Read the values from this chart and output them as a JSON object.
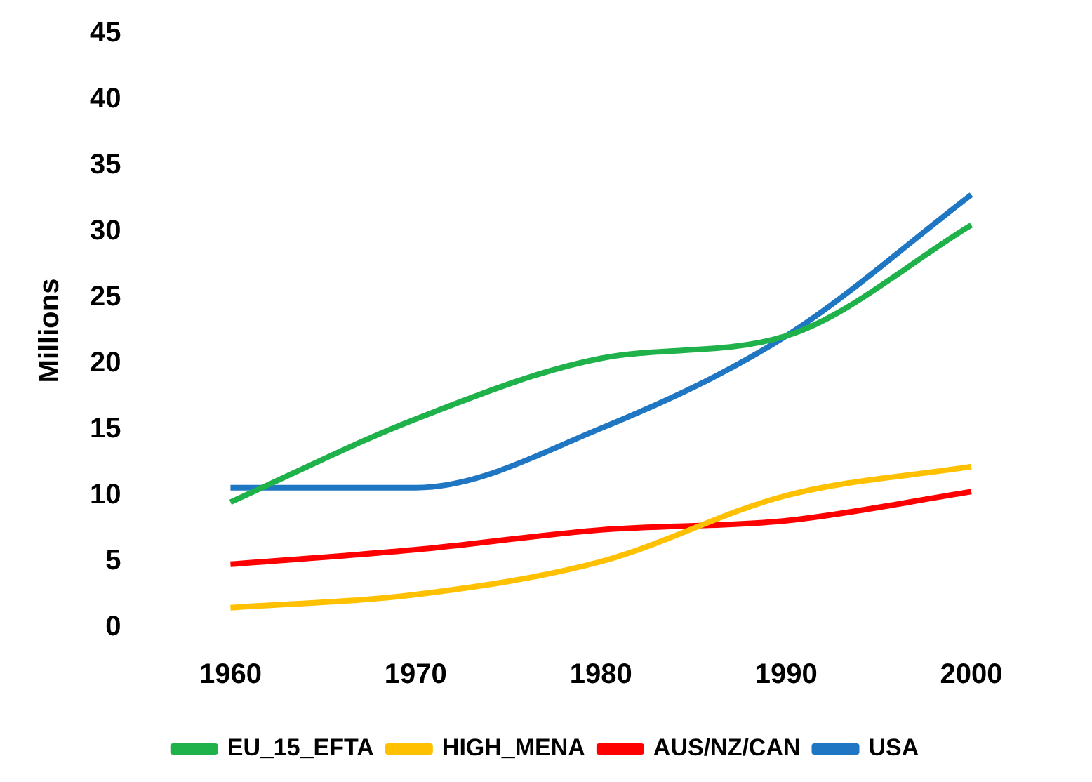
{
  "chart_data": {
    "type": "line",
    "ylabel": "Millions",
    "categories": [
      "1960",
      "1970",
      "1980",
      "1990",
      "2000"
    ],
    "series": [
      {
        "name": "EU_15_EFTA",
        "color": "#1fb24a",
        "values": [
          9.5,
          15.8,
          20.4,
          22.1,
          30.5
        ]
      },
      {
        "name": "HIGH_MENA",
        "color": "#ffc000",
        "values": [
          1.5,
          2.5,
          5,
          10,
          12.2
        ]
      },
      {
        "name": "AUS/NZ/CAN",
        "color": "#ff0000",
        "values": [
          4.8,
          5.9,
          7.4,
          8.1,
          10.3
        ]
      },
      {
        "name": "USA",
        "color": "#1f77c4",
        "values": [
          10.6,
          10.6,
          15.1,
          22.1,
          32.8
        ]
      }
    ],
    "ylim": [
      0,
      45
    ],
    "yticks": [
      0,
      5,
      10,
      15,
      20,
      25,
      30,
      35,
      40,
      45
    ],
    "grid": false,
    "legend": "bottom",
    "marker": "none",
    "line_style": "solid"
  }
}
